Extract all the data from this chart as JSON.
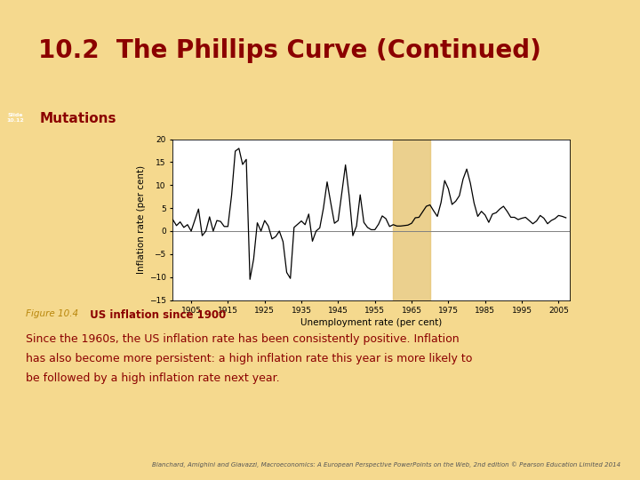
{
  "title": "10.2  The Phillips Curve (Continued)",
  "subtitle": "Mutations",
  "slide_label": "Slide\n10.12",
  "figure_label": "Figure 10.4",
  "figure_title": " US inflation since 1900",
  "caption_line1": "Since the 1960s, the US inflation rate has been consistently positive. Inflation",
  "caption_line2": "has also become more persistent: a high inflation rate this year is more likely to",
  "caption_line3": "be followed by a high inflation rate next year.",
  "footnote": "Blanchard, Amighini and Giavazzi, Macroeconomics: A European Perspective PowerPoints on the Web, 2nd edition © Pearson Education Limited 2014",
  "bg_color": "#F5D98E",
  "bar_bg": "#E8C060",
  "slide_bg": "#C8A028",
  "chart_bg": "#FFFFFF",
  "title_color": "#8B0000",
  "subtitle_color": "#8B0000",
  "caption_color": "#8B0000",
  "highlight_color": "#E8C87A",
  "highlight_x_start": 1960,
  "highlight_x_end": 1970,
  "xlabel": "Unemployment rate (per cent)",
  "ylabel": "Inflation rate (per cent)",
  "xlim": [
    1900,
    2008
  ],
  "ylim": [
    -15,
    20
  ],
  "yticks": [
    -15,
    -10,
    -5,
    0,
    5,
    10,
    15,
    20
  ],
  "xticks": [
    1905,
    1915,
    1925,
    1935,
    1945,
    1955,
    1965,
    1975,
    1985,
    1995,
    2005
  ],
  "years": [
    1900,
    1901,
    1902,
    1903,
    1904,
    1905,
    1906,
    1907,
    1908,
    1909,
    1910,
    1911,
    1912,
    1913,
    1914,
    1915,
    1916,
    1917,
    1918,
    1919,
    1920,
    1921,
    1922,
    1923,
    1924,
    1925,
    1926,
    1927,
    1928,
    1929,
    1930,
    1931,
    1932,
    1933,
    1934,
    1935,
    1936,
    1937,
    1938,
    1939,
    1940,
    1941,
    1942,
    1943,
    1944,
    1945,
    1946,
    1947,
    1948,
    1949,
    1950,
    1951,
    1952,
    1953,
    1954,
    1955,
    1956,
    1957,
    1958,
    1959,
    1960,
    1961,
    1962,
    1963,
    1964,
    1965,
    1966,
    1967,
    1968,
    1969,
    1970,
    1971,
    1972,
    1973,
    1974,
    1975,
    1976,
    1977,
    1978,
    1979,
    1980,
    1981,
    1982,
    1983,
    1984,
    1985,
    1986,
    1987,
    1988,
    1989,
    1990,
    1991,
    1992,
    1993,
    1994,
    1995,
    1996,
    1997,
    1998,
    1999,
    2000,
    2001,
    2002,
    2003,
    2004,
    2005,
    2006,
    2007
  ],
  "inflation": [
    2.5,
    1.2,
    2.0,
    0.8,
    1.4,
    0.0,
    2.4,
    4.8,
    -1.0,
    0.0,
    3.1,
    0.0,
    2.3,
    2.1,
    1.0,
    1.0,
    7.8,
    17.4,
    18.0,
    14.5,
    15.6,
    -10.5,
    -6.1,
    1.8,
    0.0,
    2.3,
    1.1,
    -1.7,
    -1.2,
    0.0,
    -2.3,
    -9.0,
    -10.3,
    0.8,
    1.5,
    2.2,
    1.4,
    3.7,
    -2.2,
    0.0,
    0.7,
    5.0,
    10.7,
    6.1,
    1.7,
    2.3,
    8.3,
    14.4,
    7.7,
    -1.0,
    1.1,
    7.9,
    1.9,
    0.8,
    0.3,
    0.3,
    1.5,
    3.3,
    2.7,
    1.0,
    1.4,
    1.1,
    1.1,
    1.2,
    1.3,
    1.7,
    2.9,
    3.0,
    4.2,
    5.4,
    5.7,
    4.4,
    3.2,
    6.2,
    11.0,
    9.2,
    5.8,
    6.5,
    7.7,
    11.3,
    13.5,
    10.4,
    6.1,
    3.2,
    4.3,
    3.5,
    1.9,
    3.7,
    4.0,
    4.8,
    5.4,
    4.3,
    3.0,
    3.0,
    2.5,
    2.8,
    3.0,
    2.3,
    1.6,
    2.2,
    3.4,
    2.8,
    1.6,
    2.3,
    2.7,
    3.4,
    3.2,
    2.9
  ]
}
